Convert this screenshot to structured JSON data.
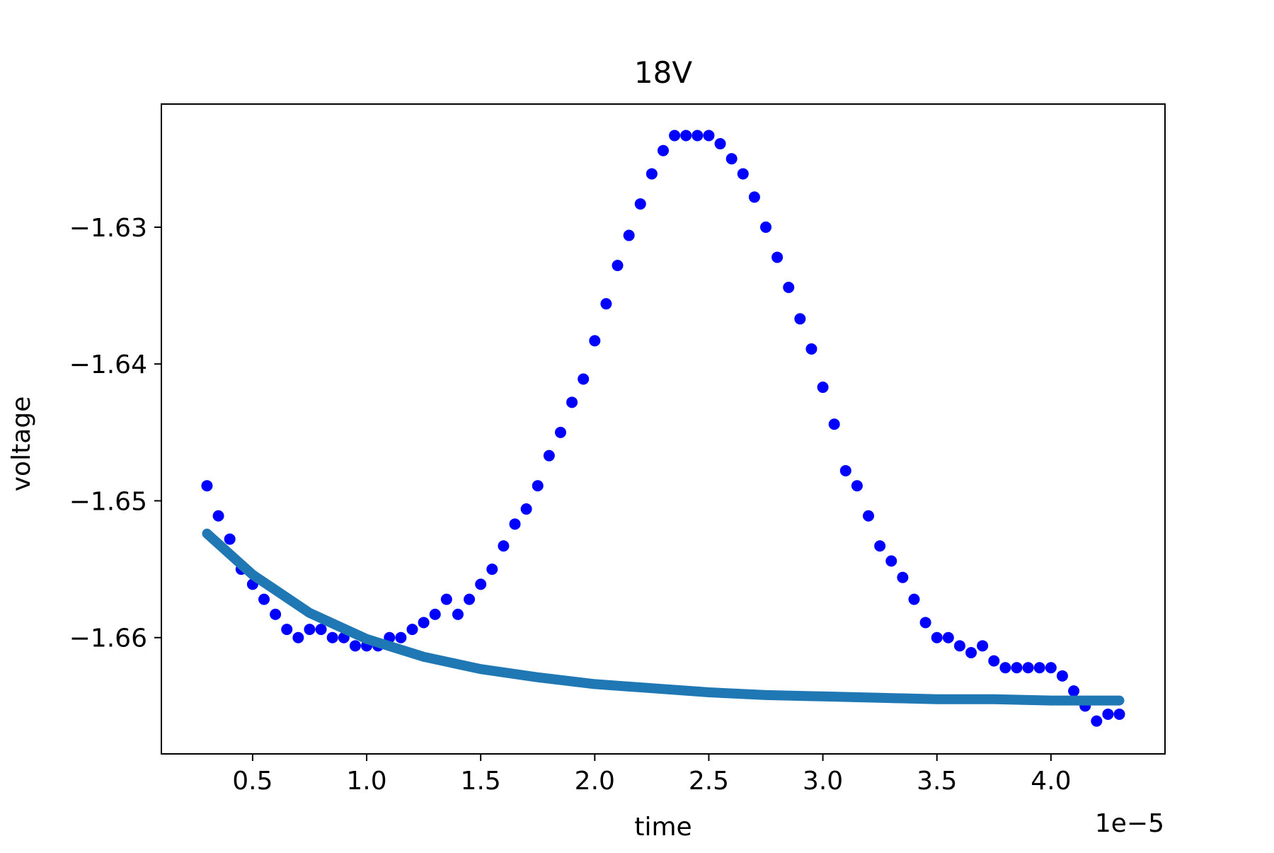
{
  "chart_data": {
    "type": "scatter",
    "title": "18V",
    "xlabel": "time",
    "ylabel": "voltage",
    "x_offset_text": "1e−5",
    "xlim": [
      1e-06,
      4.5e-05
    ],
    "ylim": [
      -1.6685,
      -1.621
    ],
    "x_ticks": [
      5e-06,
      1e-05,
      1.5e-05,
      2e-05,
      2.5e-05,
      3e-05,
      3.5e-05,
      4e-05
    ],
    "x_tick_labels": [
      "0.5",
      "1.0",
      "1.5",
      "2.0",
      "2.5",
      "3.0",
      "3.5",
      "4.0"
    ],
    "y_ticks": [
      -1.63,
      -1.64,
      -1.65,
      -1.66
    ],
    "y_tick_labels": [
      "−1.63",
      "−1.64",
      "−1.65",
      "−1.66"
    ],
    "grid": false,
    "colors": {
      "measured": "#0000ff",
      "fit": "#1f77b4"
    },
    "series": [
      {
        "kind": "scatter",
        "x": [
          3e-06,
          3.5e-06,
          4e-06,
          4.5e-06,
          5e-06,
          5.5e-06,
          6e-06,
          6.5e-06,
          7e-06,
          7.5e-06,
          8e-06,
          8.5e-06,
          9e-06,
          9.5e-06,
          1e-05,
          1.05e-05,
          1.1e-05,
          1.15e-05,
          1.2e-05,
          1.25e-05,
          1.3e-05,
          1.35e-05,
          1.4e-05,
          1.45e-05,
          1.5e-05,
          1.55e-05,
          1.6e-05,
          1.65e-05,
          1.7e-05,
          1.75e-05,
          1.8e-05,
          1.85e-05,
          1.9e-05,
          1.95e-05,
          2e-05,
          2.05e-05,
          2.1e-05,
          2.15e-05,
          2.2e-05,
          2.25e-05,
          2.3e-05,
          2.35e-05,
          2.4e-05,
          2.45e-05,
          2.5e-05,
          2.55e-05,
          2.6e-05,
          2.65e-05,
          2.7e-05,
          2.75e-05,
          2.8e-05,
          2.85e-05,
          2.9e-05,
          2.95e-05,
          3e-05,
          3.05e-05,
          3.1e-05,
          3.15e-05,
          3.2e-05,
          3.25e-05,
          3.3e-05,
          3.35e-05,
          3.4e-05,
          3.45e-05,
          3.5e-05,
          3.55e-05,
          3.6e-05,
          3.65e-05,
          3.7e-05,
          3.75e-05,
          3.8e-05,
          3.85e-05,
          3.9e-05,
          3.95e-05,
          4e-05,
          4.05e-05,
          4.1e-05,
          4.15e-05,
          4.2e-05,
          4.25e-05,
          4.3e-05
        ],
        "y": [
          -1.6489,
          -1.6511,
          -1.6528,
          -1.655,
          -1.6561,
          -1.6572,
          -1.6583,
          -1.6594,
          -1.66,
          -1.6594,
          -1.6594,
          -1.66,
          -1.66,
          -1.6606,
          -1.6606,
          -1.6606,
          -1.66,
          -1.66,
          -1.6594,
          -1.6589,
          -1.6583,
          -1.6572,
          -1.6583,
          -1.6572,
          -1.6561,
          -1.655,
          -1.6533,
          -1.6517,
          -1.6506,
          -1.6489,
          -1.6467,
          -1.645,
          -1.6428,
          -1.6411,
          -1.6383,
          -1.6356,
          -1.6328,
          -1.6306,
          -1.6283,
          -1.6261,
          -1.6244,
          -1.6233,
          -1.6233,
          -1.6233,
          -1.6233,
          -1.6239,
          -1.625,
          -1.6261,
          -1.6278,
          -1.63,
          -1.6322,
          -1.6344,
          -1.6367,
          -1.6389,
          -1.6417,
          -1.6444,
          -1.6478,
          -1.6489,
          -1.6511,
          -1.6533,
          -1.6544,
          -1.6556,
          -1.6572,
          -1.6589,
          -1.66,
          -1.66,
          -1.6606,
          -1.6611,
          -1.6606,
          -1.6617,
          -1.6622,
          -1.6622,
          -1.6622,
          -1.6622,
          -1.6622,
          -1.6628,
          -1.6639,
          -1.665,
          -1.6661,
          -1.6656,
          -1.6656
        ]
      },
      {
        "kind": "line",
        "x": [
          3e-06,
          5e-06,
          7.5e-06,
          1e-05,
          1.25e-05,
          1.5e-05,
          1.75e-05,
          2e-05,
          2.25e-05,
          2.5e-05,
          2.75e-05,
          3e-05,
          3.25e-05,
          3.5e-05,
          3.75e-05,
          4e-05,
          4.3e-05
        ],
        "y": [
          -1.6524,
          -1.6554,
          -1.6582,
          -1.6601,
          -1.6614,
          -1.6623,
          -1.6629,
          -1.6634,
          -1.6637,
          -1.664,
          -1.6642,
          -1.6643,
          -1.6644,
          -1.6645,
          -1.6645,
          -1.6646,
          -1.6646
        ]
      }
    ]
  }
}
